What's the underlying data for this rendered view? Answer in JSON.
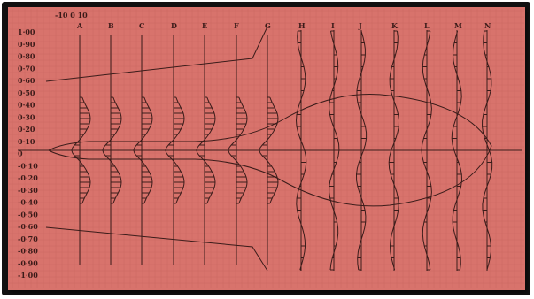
{
  "axis": {
    "scale_label": "-10 0 10",
    "y_labels": [
      "1·00",
      "0·90",
      "0·80",
      "0·70",
      "0·60",
      "0·50",
      "0·40",
      "0·30",
      "0·20",
      "0·10",
      "0",
      "-0·10",
      "-0·20",
      "-0·30",
      "-0·40",
      "-0·50",
      "-0·60",
      "-0·70",
      "-0·80",
      "-0·90",
      "-1·00"
    ]
  },
  "columns": [
    "A",
    "B",
    "C",
    "D",
    "E",
    "F",
    "G",
    "H",
    "I",
    "J",
    "K",
    "L",
    "M",
    "N"
  ]
}
